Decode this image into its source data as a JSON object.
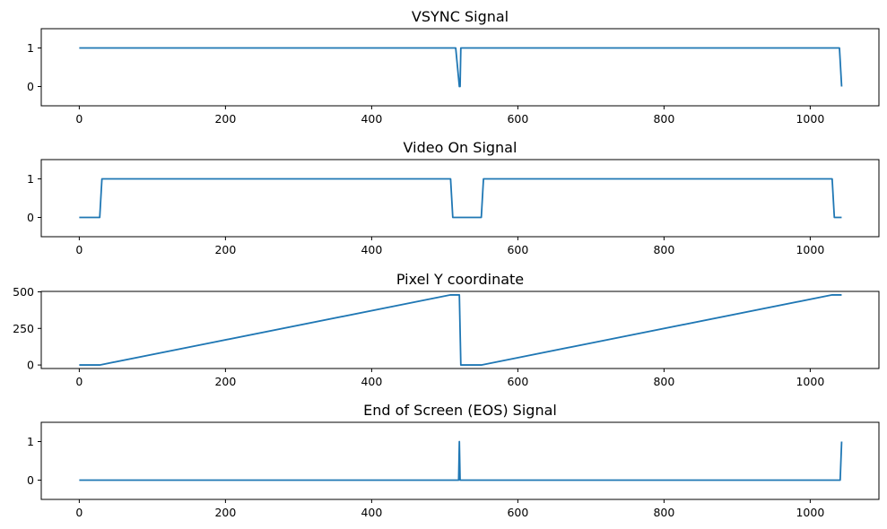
{
  "figure": {
    "accent_color": "#1f77b4",
    "background": "#ffffff"
  },
  "chart_data": [
    {
      "type": "line",
      "title": "VSYNC Signal",
      "xlabel": "",
      "ylabel": "",
      "xlim": [
        -52,
        1094
      ],
      "ylim": [
        -0.5,
        1.5
      ],
      "x_ticks": [
        0,
        200,
        400,
        600,
        800,
        1000
      ],
      "y_ticks": [
        0,
        1
      ],
      "grid": false,
      "series": [
        {
          "color": "#1f77b4",
          "x": [
            0,
            515,
            520,
            521,
            522,
            1040,
            1043
          ],
          "y": [
            1,
            1,
            0,
            0,
            1,
            1,
            0
          ]
        }
      ]
    },
    {
      "type": "line",
      "title": "Video On Signal",
      "xlabel": "",
      "ylabel": "",
      "xlim": [
        -52,
        1094
      ],
      "ylim": [
        -0.5,
        1.5
      ],
      "x_ticks": [
        0,
        200,
        400,
        600,
        800,
        1000
      ],
      "y_ticks": [
        0,
        1
      ],
      "grid": false,
      "series": [
        {
          "color": "#1f77b4",
          "x": [
            0,
            28,
            31,
            508,
            511,
            550,
            553,
            1030,
            1033,
            1043
          ],
          "y": [
            0,
            0,
            1,
            1,
            0,
            0,
            1,
            1,
            0,
            0
          ]
        }
      ]
    },
    {
      "type": "line",
      "title": "Pixel Y coordinate",
      "xlabel": "",
      "ylabel": "",
      "xlim": [
        -52,
        1094
      ],
      "ylim": [
        -24,
        503
      ],
      "x_ticks": [
        0,
        200,
        400,
        600,
        800,
        1000
      ],
      "y_ticks": [
        0,
        250,
        500
      ],
      "grid": false,
      "series": [
        {
          "color": "#1f77b4",
          "x": [
            0,
            28,
            508,
            520,
            522,
            550,
            1030,
            1043
          ],
          "y": [
            0,
            0,
            479,
            479,
            0,
            0,
            479,
            479
          ]
        }
      ]
    },
    {
      "type": "line",
      "title": "End of Screen (EOS) Signal",
      "xlabel": "",
      "ylabel": "",
      "xlim": [
        -52,
        1094
      ],
      "ylim": [
        -0.5,
        1.5
      ],
      "x_ticks": [
        0,
        200,
        400,
        600,
        800,
        1000
      ],
      "y_ticks": [
        0,
        1
      ],
      "grid": false,
      "series": [
        {
          "color": "#1f77b4",
          "x": [
            0,
            519,
            520,
            521,
            1041,
            1043
          ],
          "y": [
            0,
            0,
            1,
            0,
            0,
            1
          ]
        }
      ]
    }
  ]
}
